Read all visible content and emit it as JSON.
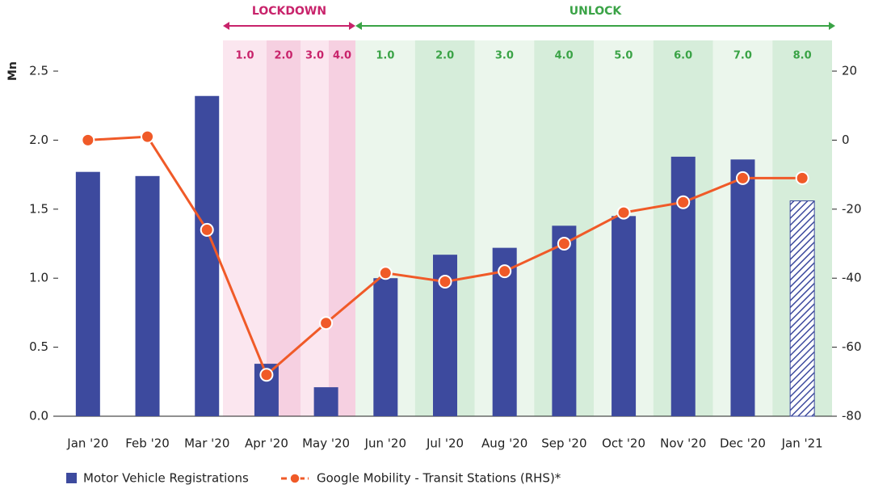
{
  "chart_data": {
    "type": "bar_line",
    "y_label": "Mn",
    "categories": [
      "Jan '20",
      "Feb '20",
      "Mar '20",
      "Apr '20",
      "May '20",
      "Jun '20",
      "Jul '20",
      "Aug '20",
      "Sep '20",
      "Oct '20",
      "Nov '20",
      "Dec '20",
      "Jan '21"
    ],
    "series": [
      {
        "name": "Motor Vehicle Registrations",
        "color": "#3d4a9e",
        "values": [
          1.77,
          1.74,
          2.32,
          0.38,
          0.21,
          1.0,
          1.17,
          1.22,
          1.38,
          1.45,
          1.88,
          1.86,
          1.56
        ]
      },
      {
        "name": "Google Mobility - Transit Stations (RHS)*",
        "color": "#f05a28",
        "axis": "y2",
        "values": [
          0,
          1,
          -26,
          -68,
          -53,
          -38.5,
          -41,
          -38,
          -30,
          -21,
          -18,
          -11,
          -11
        ]
      }
    ],
    "ylim": [
      0,
      2.5
    ],
    "yticks": [
      {
        "value": 0,
        "label": "0.0"
      },
      0.5,
      {
        "value": 1,
        "label": "1.0"
      },
      1.5,
      {
        "value": 2,
        "label": "2.0"
      },
      2.5
    ],
    "y2lim": [
      -80,
      20
    ],
    "y2ticks": [
      -80,
      -60,
      -40,
      -20,
      0,
      20
    ],
    "lockdown": {
      "label": "LOCKDOWN",
      "color": "#c8236b",
      "phases": [
        "1.0",
        "2.0",
        "3.0",
        "4.0"
      ]
    },
    "unlock": {
      "label": "UNLOCK",
      "color": "#3aa346",
      "phases": [
        "1.0",
        "2.0",
        "3.0",
        "4.0",
        "5.0",
        "6.0",
        "7.0",
        "8.0"
      ]
    }
  }
}
